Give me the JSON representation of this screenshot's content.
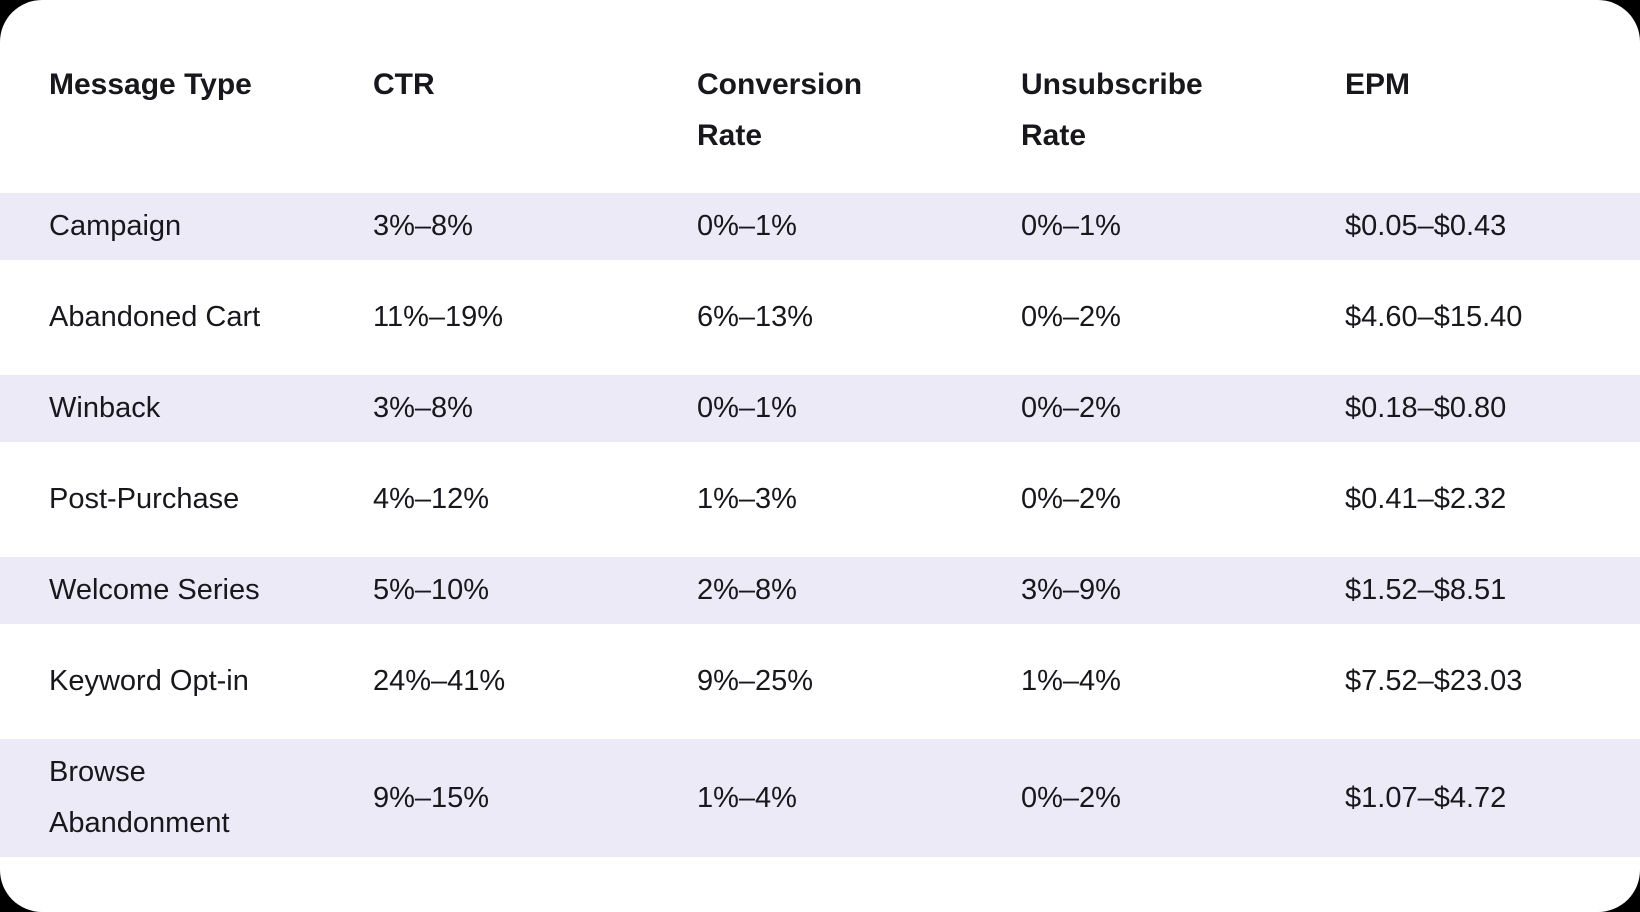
{
  "colors": {
    "page_background": "#000000",
    "card_background": "#ffffff",
    "row_stripe": "#eceaf6",
    "text": "#17171c"
  },
  "table": {
    "columns": [
      {
        "label": "Message Type"
      },
      {
        "label": "CTR"
      },
      {
        "label": "Conversion\nRate"
      },
      {
        "label": "Unsubscribe\nRate"
      },
      {
        "label": "EPM"
      }
    ],
    "rows": [
      {
        "message_type": "Campaign",
        "ctr": "3%–8%",
        "conversion_rate": "0%–1%",
        "unsubscribe_rate": "0%–1%",
        "epm": "$0.05–$0.43"
      },
      {
        "message_type": "Abandoned Cart",
        "ctr": "11%–19%",
        "conversion_rate": "6%–13%",
        "unsubscribe_rate": "0%–2%",
        "epm": "$4.60–$15.40"
      },
      {
        "message_type": "Winback",
        "ctr": "3%–8%",
        "conversion_rate": "0%–1%",
        "unsubscribe_rate": "0%–2%",
        "epm": "$0.18–$0.80"
      },
      {
        "message_type": "Post-Purchase",
        "ctr": "4%–12%",
        "conversion_rate": "1%–3%",
        "unsubscribe_rate": "0%–2%",
        "epm": "$0.41–$2.32"
      },
      {
        "message_type": "Welcome Series",
        "ctr": "5%–10%",
        "conversion_rate": "2%–8%",
        "unsubscribe_rate": "3%–9%",
        "epm": "$1.52–$8.51"
      },
      {
        "message_type": "Keyword Opt-in",
        "ctr": "24%–41%",
        "conversion_rate": "9%–25%",
        "unsubscribe_rate": "1%–4%",
        "epm": "$7.52–$23.03"
      },
      {
        "message_type": "Browse\nAbandonment",
        "ctr": "9%–15%",
        "conversion_rate": "1%–4%",
        "unsubscribe_rate": "0%–2%",
        "epm": "$1.07–$4.72"
      }
    ]
  }
}
